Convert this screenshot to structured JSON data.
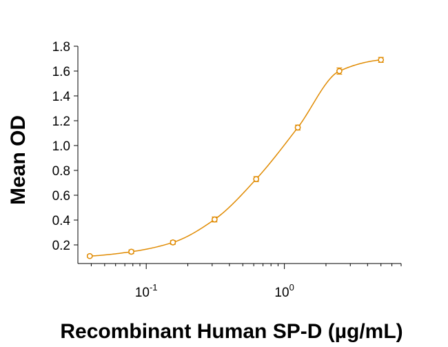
{
  "chart_data": {
    "type": "scatter",
    "title": "",
    "xlabel": "Recombinant Human SP-D (µg/mL)",
    "ylabel": "Mean OD",
    "x_scale": "log",
    "xlim": [
      0.032,
      7.0
    ],
    "ylim": [
      0.05,
      1.8
    ],
    "x_ticks": [
      {
        "value": 0.1,
        "base": "10",
        "exp": "-1"
      },
      {
        "value": 1.0,
        "base": "10",
        "exp": "0"
      }
    ],
    "y_ticks": [
      {
        "value": 0.2,
        "label": "0.2"
      },
      {
        "value": 0.4,
        "label": "0.4"
      },
      {
        "value": 0.6,
        "label": "0.6"
      },
      {
        "value": 0.8,
        "label": "0.8"
      },
      {
        "value": 1.0,
        "label": "1.0"
      },
      {
        "value": 1.2,
        "label": "1.2"
      },
      {
        "value": 1.4,
        "label": "1.4"
      },
      {
        "value": 1.6,
        "label": "1.6"
      },
      {
        "value": 1.8,
        "label": "1.8"
      }
    ],
    "grid": false,
    "series": [
      {
        "color": "#E08A00",
        "marker": "open-circle",
        "error_bars": true,
        "fit": "4PL",
        "points": [
          {
            "x": 0.039,
            "y": 0.11,
            "err": 0.01
          },
          {
            "x": 0.078,
            "y": 0.145,
            "err": 0.015
          },
          {
            "x": 0.156,
            "y": 0.22,
            "err": 0.015
          },
          {
            "x": 0.3125,
            "y": 0.405,
            "err": 0.02
          },
          {
            "x": 0.625,
            "y": 0.73,
            "err": 0.02
          },
          {
            "x": 1.25,
            "y": 1.145,
            "err": 0.02
          },
          {
            "x": 2.5,
            "y": 1.6,
            "err": 0.025
          },
          {
            "x": 5.0,
            "y": 1.69,
            "err": 0.02
          }
        ]
      }
    ]
  }
}
